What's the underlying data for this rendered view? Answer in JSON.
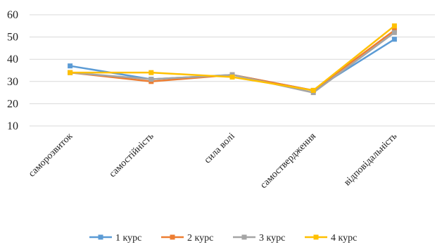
{
  "chart_data": {
    "type": "line",
    "categories": [
      "саморозвиток",
      "самостійність",
      "сила волі",
      "самоствердження",
      "відповідальність"
    ],
    "y_tick_labels": [
      "10",
      "20",
      "30",
      "40",
      "50",
      "60"
    ],
    "ylim": [
      10,
      60
    ],
    "grid": true,
    "legend_position": "bottom",
    "series": [
      {
        "name": "1 курс",
        "color": "#5B9BD5",
        "values": [
          37,
          31,
          33,
          26,
          49
        ]
      },
      {
        "name": "2 курс",
        "color": "#ED7D31",
        "values": [
          34,
          30,
          33,
          26,
          53
        ]
      },
      {
        "name": "3 курс",
        "color": "#A5A5A5",
        "values": [
          34,
          31,
          33,
          25,
          52
        ]
      },
      {
        "name": "4 курс",
        "color": "#FFC000",
        "values": [
          34,
          34,
          32,
          26,
          55
        ]
      }
    ]
  }
}
